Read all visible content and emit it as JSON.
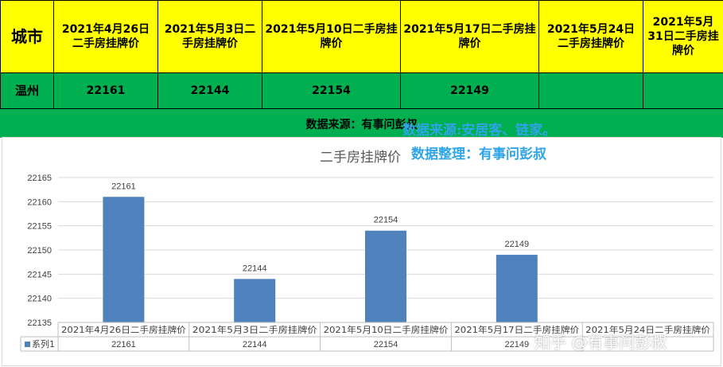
{
  "table": {
    "city_header": "城市",
    "date_headers": [
      "2021年4月26日二手房挂牌价",
      "2021年5月3日二手房挂牌价",
      "2021年5月10日二手房挂牌价",
      "2021年5月17日二手房挂牌价",
      "2021年5月24日二手房挂牌价",
      "2021年5月31日二手房挂牌价"
    ],
    "city": "温州",
    "prices": [
      "22161",
      "22144",
      "22154",
      "22149",
      "",
      ""
    ]
  },
  "source_line": "数据来源：有事问彭叔",
  "notes": {
    "source": "数据来源:安居客、链家。",
    "arranged": "数据整理：有事问彭叔"
  },
  "watermark": "知乎 @有事问彭叔",
  "colors": {
    "header_bg": "#ffff00",
    "row_bg": "#00b050",
    "bar": "#4f81bd",
    "note": "#2fa4e7"
  },
  "chart_data": {
    "type": "bar",
    "title": "二手房挂牌价",
    "categories": [
      "2021年4月26日二手房挂牌价",
      "2021年5月3日二手房挂牌价",
      "2021年5月10日二手房挂牌价",
      "2021年5月17日二手房挂牌价",
      "2021年5月24日二手房挂牌价"
    ],
    "series": [
      {
        "name": "系列1",
        "values": [
          22161,
          22144,
          22154,
          22149,
          null
        ]
      }
    ],
    "data_labels": [
      "22161",
      "22144",
      "22154",
      "22149",
      ""
    ],
    "yticks": [
      "22135",
      "22140",
      "22145",
      "22150",
      "22155",
      "22160",
      "22165"
    ],
    "ylim": [
      22135,
      22165
    ],
    "grid": true,
    "legend": "data-table"
  }
}
